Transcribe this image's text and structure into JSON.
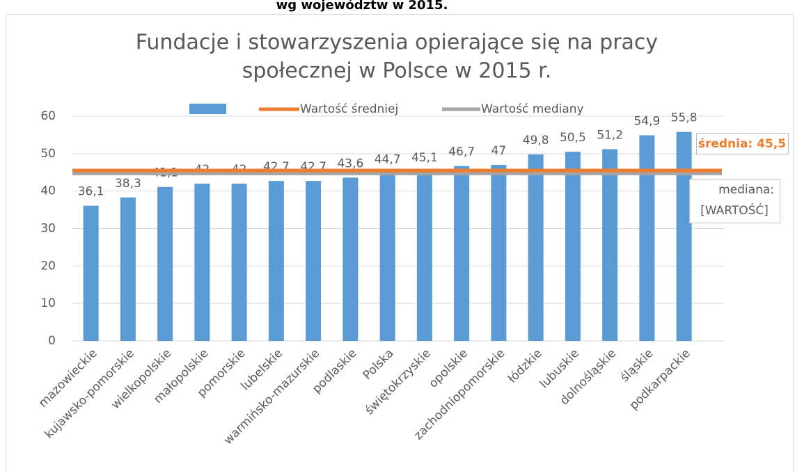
{
  "chart_data": {
    "type": "bar",
    "heading": "wg województw w 2015.",
    "title": [
      "Fundacje i stowarzyszenia opierające się na pracy",
      "społecznej w Polsce w 2015 r."
    ],
    "categories": [
      "mazowieckie",
      "kujawsko-pomorskie",
      "wielkopolskie",
      "małopolskie",
      "pomorskie",
      "lubelskie",
      "warmińsko-mazurskie",
      "podlaskie",
      "Polska",
      "świętokrzyskie",
      "opolskie",
      "zachodniopomorskie",
      "łódzkie",
      "lubuskie",
      "dolnośląskie",
      "śląskie",
      "podkarpackie"
    ],
    "series": [
      {
        "color": "#5b9bd5",
        "values": [
          36.1,
          38.3,
          41.1,
          42,
          42,
          42.7,
          42.7,
          43.6,
          44.7,
          45.1,
          46.7,
          47,
          49.8,
          50.5,
          51.2,
          54.9,
          55.8
        ],
        "value_labels": [
          "36,1",
          "38,3",
          "41,1",
          "42",
          "42",
          "42,7",
          "42,7",
          "43,6",
          "44,7",
          "45,1",
          "46,7",
          "47",
          "49,8",
          "50,5",
          "51,2",
          "54,9",
          "55,8"
        ]
      }
    ],
    "reference_lines": [
      {
        "name": "Wartość średniej",
        "color": "#ed7d31",
        "value": 45.5,
        "label": "średnia: 45,5"
      },
      {
        "name": "Wartość mediany",
        "color": "#a5a5a5",
        "value": 44.7,
        "label": [
          "mediana:",
          "[WARTOŚĆ]"
        ]
      }
    ],
    "ylim": [
      0,
      60
    ],
    "yticks": [
      0,
      10,
      20,
      30,
      40,
      50,
      60
    ],
    "grid": true
  }
}
